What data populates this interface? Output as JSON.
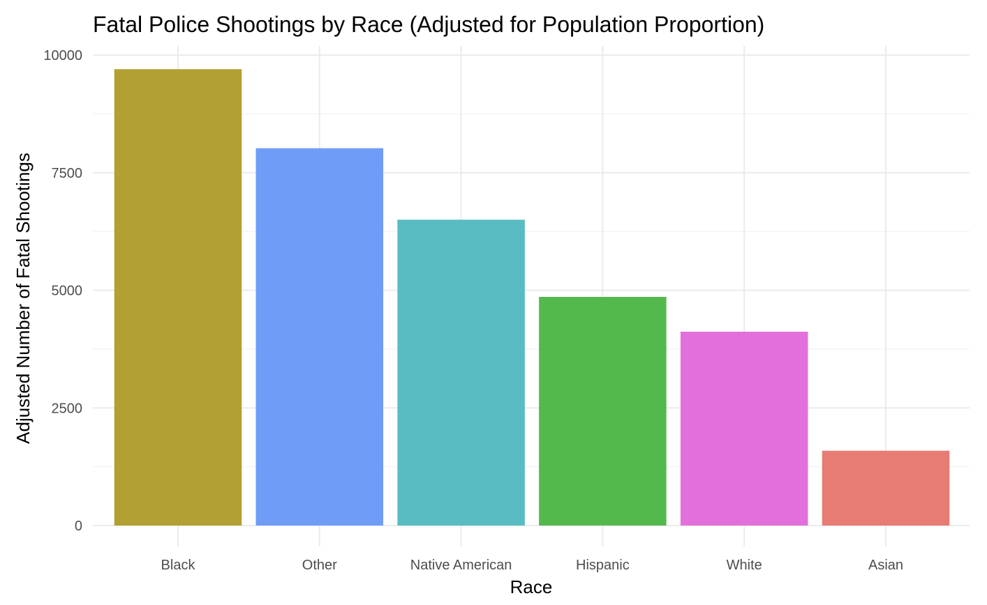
{
  "chart_data": {
    "type": "bar",
    "title": "Fatal Police Shootings by Race (Adjusted for Population Proportion)",
    "xlabel": "Race",
    "ylabel": "Adjusted Number of Fatal Shootings",
    "categories": [
      "Black",
      "Other",
      "Native American",
      "Hispanic",
      "White",
      "Asian"
    ],
    "values": [
      9700,
      8020,
      6500,
      4860,
      4120,
      1590
    ],
    "colors": [
      "#B3A032",
      "#6F9CF7",
      "#58BCC2",
      "#53B94D",
      "#E36FDC",
      "#E67C73"
    ],
    "ylim": [
      0,
      10000
    ],
    "yticks": [
      0,
      2500,
      5000,
      7500,
      10000
    ],
    "ytick_labels": [
      "0",
      "2500",
      "5000",
      "7500",
      "10000"
    ],
    "grid": true,
    "legend": "none"
  }
}
